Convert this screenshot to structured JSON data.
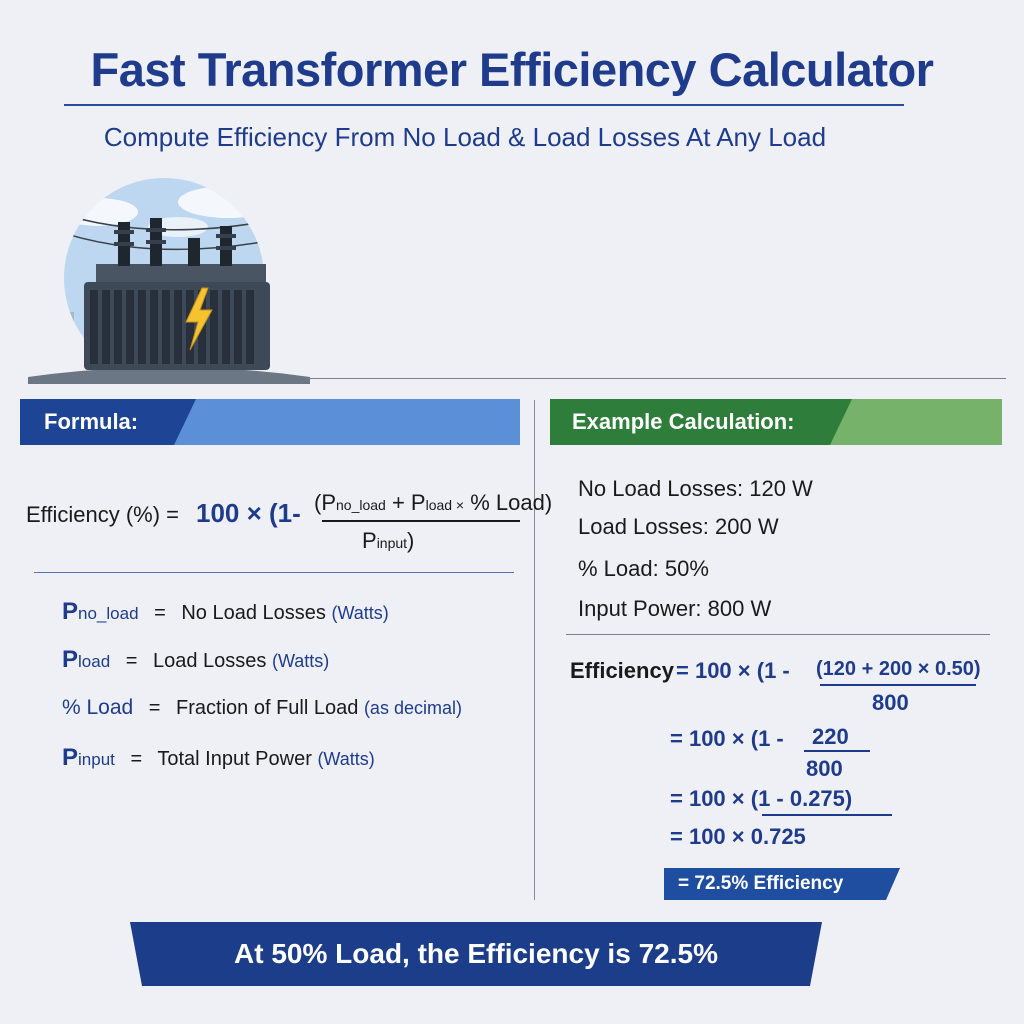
{
  "header": {
    "title": "Fast Transformer Efficiency Calculator",
    "subtitle": "Compute  Efficiency From No Load & Load Losses At Any Load"
  },
  "colors": {
    "primary_blue": "#1f3c8c",
    "light_blue": "#5b8fd8",
    "green_dark": "#2f7d3a",
    "green_light": "#76b26a",
    "background": "#eef0f6"
  },
  "formula_section": {
    "label": "Formula:",
    "lhs": "Efficiency (%) = ",
    "coef": "100 × (1-",
    "num_open": "(P",
    "p_noload_sub": "no_load",
    "plus": " + P",
    "p_load_sub": "load ×",
    "pct_load": " % Load)",
    "den_p": "P",
    "den_sub": "input",
    "den_close": ")",
    "definitions": [
      {
        "sym": "P",
        "sub": "no_load",
        "eq": "=",
        "desc": "No Load Losses",
        "unit": "(Watts)"
      },
      {
        "sym": "P",
        "sub": "load",
        "eq": "=",
        "desc": "Load Losses",
        "unit": "(Watts)"
      },
      {
        "sym": "% Load",
        "sub": "",
        "eq": "=",
        "desc": "Fraction of Full Load",
        "unit": "(as decimal)"
      },
      {
        "sym": "P",
        "sub": "input",
        "eq": "=",
        "desc": "Total Input Power",
        "unit": "(Watts)"
      }
    ]
  },
  "example_section": {
    "label": "Example Calculation:",
    "given": [
      {
        "label": "No Load Losses:",
        "value": "120 W"
      },
      {
        "label": "Load Losses:",
        "value": "200 W"
      },
      {
        "label": "% Load:",
        "value": "50%"
      },
      {
        "label": "Input Power:",
        "value": "800 W"
      }
    ],
    "step1_lhs": "Efficiency",
    "step1_rhs": "= 100 × (1 -",
    "step1_num": "(120 + 200 × 0.50)",
    "step1_den": "800",
    "step2_rhs": "= 100 × (1 -",
    "step2_num": "220",
    "step2_den": "800",
    "step3": "= 100 × (1 - 0.275)",
    "step4": "= 100 × 0.725",
    "result": "= 72.5% Efficiency"
  },
  "banner": {
    "text": "At 50% Load, the Efficiency is 72.5%"
  }
}
